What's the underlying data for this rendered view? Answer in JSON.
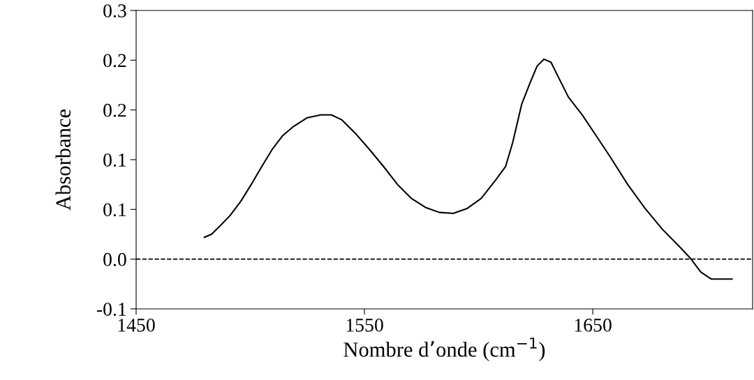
{
  "chart_data": {
    "type": "line",
    "xlabel": "Nombre d’onde (cm$^{−1}$)",
    "ylabel": "Absorbance",
    "xlim": [
      1450,
      1720
    ],
    "xticks": [
      1450,
      1550,
      1650
    ],
    "ylim": [
      -0.05,
      0.25
    ],
    "yticks": [
      {
        "value": -0.05,
        "label": "-0.1"
      },
      {
        "value": 0,
        "label": "0.0"
      },
      {
        "value": 0.05,
        "label": "0.1"
      },
      {
        "value": 0.1,
        "label": "0.1"
      },
      {
        "value": 0.15,
        "label": "0.2"
      },
      {
        "value": 0.2,
        "label": "0.2"
      },
      {
        "value": 0.25,
        "label": "0.3"
      }
    ],
    "grid": false,
    "legend": false,
    "marker": "none",
    "line_style": "solid",
    "ref_lines": [
      {
        "axis": "y",
        "value": 0,
        "label": null,
        "color": "#000000",
        "line_style": "dashed"
      }
    ],
    "series": [
      {
        "color": "#000000",
        "x": [
          1479.9,
          1483,
          1486.6,
          1491.2,
          1495.8,
          1500.4,
          1505,
          1509.5,
          1514.1,
          1518.7,
          1524.8,
          1530.9,
          1535.5,
          1540.1,
          1546.2,
          1552.3,
          1558.4,
          1564.5,
          1570.6,
          1576.7,
          1582.8,
          1588.9,
          1595,
          1601.1,
          1607.3,
          1611.8,
          1614.9,
          1618.9,
          1622.5,
          1625.6,
          1628.6,
          1631.7,
          1634.7,
          1639.3,
          1645.4,
          1651.5,
          1657.6,
          1665.3,
          1672.9,
          1680.5,
          1688.2,
          1692.7,
          1697.3,
          1701.9,
          1706.5,
          1711
        ],
        "values": [
          0.022,
          0.025,
          0.033,
          0.044,
          0.058,
          0.075,
          0.093,
          0.11,
          0.124,
          0.133,
          0.142,
          0.145,
          0.145,
          0.14,
          0.126,
          0.11,
          0.093,
          0.075,
          0.061,
          0.052,
          0.047,
          0.046,
          0.051,
          0.061,
          0.079,
          0.093,
          0.117,
          0.156,
          0.177,
          0.194,
          0.201,
          0.198,
          0.184,
          0.163,
          0.145,
          0.124,
          0.103,
          0.075,
          0.051,
          0.03,
          0.012,
          0.001,
          -0.013,
          -0.02,
          -0.02,
          -0.02
        ]
      }
    ]
  }
}
